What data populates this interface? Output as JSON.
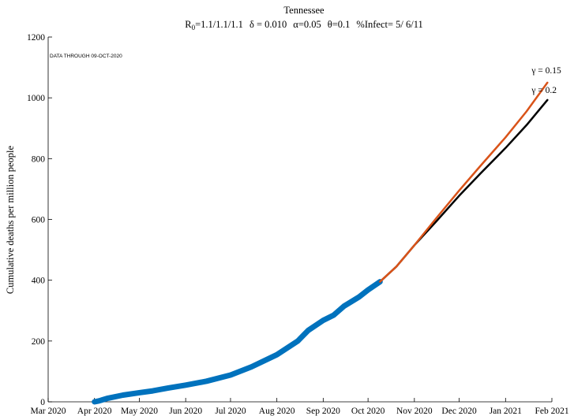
{
  "chart_data": {
    "type": "line",
    "title": "Tennessee",
    "subtitle": {
      "r0_prefix": "R",
      "r0_sub": "0",
      "r0_value": "=1.1/1.1/1.1",
      "delta": "δ = 0.010",
      "alpha": "α=0.05",
      "theta": "θ=0.1",
      "infect": "%Infect= 5/ 6/11"
    },
    "annotation": "DATA THROUGH 09-OCT-2020",
    "ylabel": "Cumulative deaths per million people",
    "xlabel": "",
    "ylim": [
      0,
      1200
    ],
    "yticks": [
      0,
      200,
      400,
      600,
      800,
      1000,
      1200
    ],
    "xticks": [
      {
        "date": "2020-03-01",
        "label": "Mar 2020"
      },
      {
        "date": "2020-04-01",
        "label": "Apr 2020"
      },
      {
        "date": "2020-05-01",
        "label": "May 2020"
      },
      {
        "date": "2020-06-01",
        "label": "Jun 2020"
      },
      {
        "date": "2020-07-01",
        "label": "Jul 2020"
      },
      {
        "date": "2020-08-01",
        "label": "Aug 2020"
      },
      {
        "date": "2020-09-01",
        "label": "Sep 2020"
      },
      {
        "date": "2020-10-01",
        "label": "Oct 2020"
      },
      {
        "date": "2020-11-01",
        "label": "Nov 2020"
      },
      {
        "date": "2020-12-01",
        "label": "Dec 2020"
      },
      {
        "date": "2021-01-01",
        "label": "Jan 2021"
      },
      {
        "date": "2021-02-01",
        "label": "Feb 2021"
      }
    ],
    "xlim": [
      "2020-03-01",
      "2021-02-01"
    ],
    "series": [
      {
        "color": "#0072BD",
        "style": "thick",
        "points": [
          [
            "2020-04-01",
            0
          ],
          [
            "2020-04-04",
            3
          ],
          [
            "2020-04-10",
            12
          ],
          [
            "2020-04-20",
            22
          ],
          [
            "2020-05-01",
            30
          ],
          [
            "2020-05-10",
            36
          ],
          [
            "2020-05-20",
            45
          ],
          [
            "2020-06-01",
            55
          ],
          [
            "2020-06-15",
            68
          ],
          [
            "2020-07-01",
            88
          ],
          [
            "2020-07-15",
            115
          ],
          [
            "2020-08-01",
            155
          ],
          [
            "2020-08-15",
            200
          ],
          [
            "2020-08-22",
            235
          ],
          [
            "2020-09-01",
            268
          ],
          [
            "2020-09-08",
            285
          ],
          [
            "2020-09-15",
            315
          ],
          [
            "2020-09-25",
            345
          ],
          [
            "2020-10-01",
            368
          ],
          [
            "2020-10-09",
            395
          ]
        ]
      },
      {
        "name": "γ = 0.2",
        "color": "#000000",
        "style": "normal",
        "points": [
          [
            "2020-10-09",
            395
          ],
          [
            "2020-10-20",
            445
          ],
          [
            "2020-11-01",
            515
          ],
          [
            "2020-11-15",
            590
          ],
          [
            "2020-12-01",
            678
          ],
          [
            "2020-12-15",
            750
          ],
          [
            "2021-01-01",
            835
          ],
          [
            "2021-01-15",
            910
          ],
          [
            "2021-01-29",
            993
          ]
        ]
      },
      {
        "name": "γ = 0.15",
        "color": "#D95319",
        "style": "normal",
        "points": [
          [
            "2020-10-09",
            395
          ],
          [
            "2020-10-20",
            445
          ],
          [
            "2020-11-01",
            515
          ],
          [
            "2020-11-15",
            600
          ],
          [
            "2020-12-01",
            695
          ],
          [
            "2020-12-15",
            775
          ],
          [
            "2021-01-01",
            870
          ],
          [
            "2021-01-15",
            955
          ],
          [
            "2021-01-29",
            1050
          ]
        ]
      }
    ],
    "labels": [
      {
        "text": "γ = 0.15",
        "series": 2
      },
      {
        "text": "γ = 0.2",
        "series": 1
      }
    ]
  }
}
